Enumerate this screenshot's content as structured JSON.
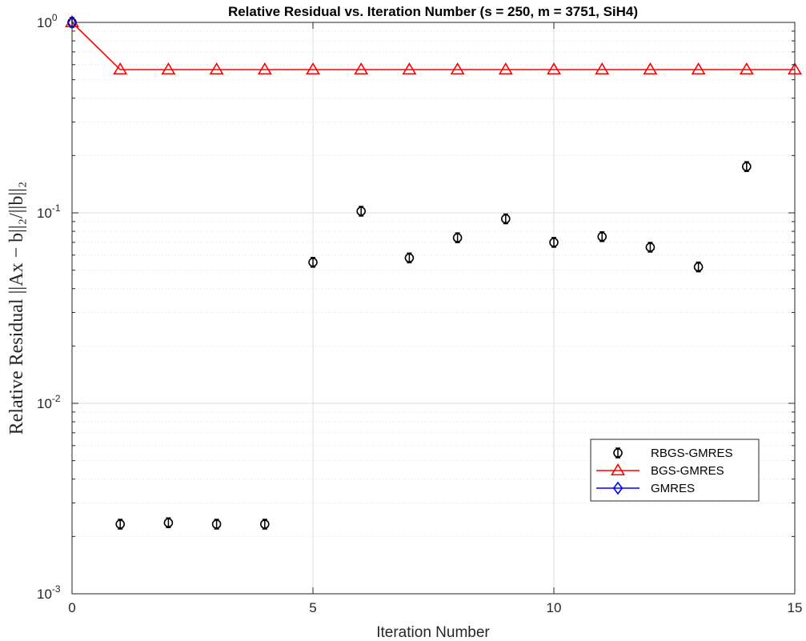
{
  "chart_data": {
    "type": "scatter",
    "title": "Relative Residual vs. Iteration Number (s = 250, m = 3751, SiH4)",
    "xlabel": "Iteration Number",
    "ylabel": "Relative Residual ||Ax − b||₂/||b||₂",
    "xlim": [
      0,
      15
    ],
    "ylim": [
      0.001,
      1
    ],
    "yscale": "log",
    "grid": true,
    "legend_position": "lower-right",
    "x_ticks": [
      {
        "value": 0,
        "label": "0"
      },
      {
        "value": 5,
        "label": "5"
      },
      {
        "value": 10,
        "label": "10"
      },
      {
        "value": 15,
        "label": "15"
      }
    ],
    "y_ticks": [
      {
        "value": 0.001,
        "base": "10",
        "exp": "-3"
      },
      {
        "value": 0.01,
        "base": "10",
        "exp": "-2"
      },
      {
        "value": 0.1,
        "base": "10",
        "exp": "-1"
      },
      {
        "value": 1,
        "base": "10",
        "exp": "0"
      }
    ],
    "series": [
      {
        "name": "RBGS-GMRES",
        "color": "#000000",
        "marker": "circle",
        "line": false,
        "error_bars": true,
        "x": [
          0,
          1,
          2,
          3,
          4,
          5,
          6,
          7,
          8,
          9,
          10,
          11,
          12,
          13,
          14
        ],
        "y": [
          1.0,
          0.00232,
          0.00236,
          0.00232,
          0.00232,
          0.055,
          0.102,
          0.058,
          0.074,
          0.093,
          0.07,
          0.075,
          0.066,
          0.052,
          0.175
        ]
      },
      {
        "name": "BGS-GMRES",
        "color": "#ff0000",
        "marker": "triangle",
        "line": true,
        "x": [
          0,
          1,
          2,
          3,
          4,
          5,
          6,
          7,
          8,
          9,
          10,
          11,
          12,
          13,
          14,
          15
        ],
        "y": [
          1.0,
          0.565,
          0.565,
          0.565,
          0.565,
          0.565,
          0.565,
          0.565,
          0.565,
          0.565,
          0.565,
          0.565,
          0.565,
          0.565,
          0.565,
          0.565
        ]
      },
      {
        "name": "GMRES",
        "color": "#0000ff",
        "marker": "diamond",
        "line": true,
        "x": [
          0
        ],
        "y": [
          1.0
        ]
      }
    ]
  }
}
